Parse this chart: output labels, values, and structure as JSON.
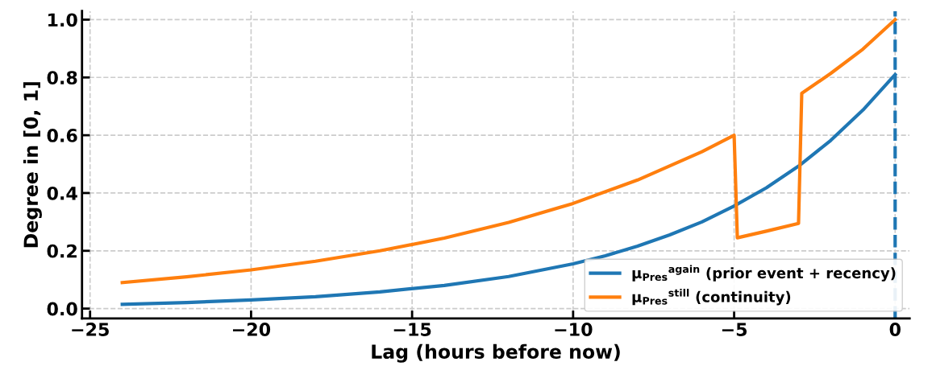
{
  "chart_data": {
    "type": "line",
    "xlabel": "Lag (hours before now)",
    "ylabel": "Degree in [0, 1]",
    "series": [
      {
        "name": "μ$_{Pres}$$^{again}$ (prior event + recency)",
        "color": "#1f77b4",
        "x": [
          -24,
          -22,
          -20,
          -18,
          -16,
          -14,
          -12,
          -10,
          -9,
          -8,
          -7,
          -6,
          -5,
          -4,
          -3,
          -2,
          -1,
          0
        ],
        "values": [
          0.015,
          0.021,
          0.03,
          0.041,
          0.058,
          0.08,
          0.111,
          0.155,
          0.183,
          0.216,
          0.255,
          0.3,
          0.355,
          0.418,
          0.493,
          0.582,
          0.687,
          0.81
        ]
      },
      {
        "name": "μ$_{Pres}$$^{still}$ (continuity)",
        "color": "#ff7f0e",
        "x": [
          -24,
          -22,
          -20,
          -18,
          -16,
          -14,
          -12,
          -10,
          -8,
          -6,
          -5,
          -4.9,
          -4,
          -3,
          -2.9,
          -2,
          -1,
          0
        ],
        "values": [
          0.09,
          0.11,
          0.134,
          0.164,
          0.2,
          0.244,
          0.298,
          0.364,
          0.445,
          0.543,
          0.6,
          0.245,
          0.268,
          0.295,
          0.745,
          0.814,
          0.898,
          1.0
        ]
      }
    ],
    "ref_lines": [
      {
        "axis": "x",
        "value": 0,
        "color": "#1f77b4",
        "line_style": "dashed"
      }
    ],
    "xlim": [
      -25.25,
      0.45
    ],
    "ylim": [
      -0.034,
      1.03
    ],
    "xticks": [
      {
        "value": -25,
        "label": "−25"
      },
      {
        "value": -20,
        "label": "−20"
      },
      {
        "value": -15,
        "label": "−15"
      },
      {
        "value": -10,
        "label": "−10"
      },
      {
        "value": -5,
        "label": "−5"
      },
      {
        "value": 0,
        "label": "0"
      }
    ],
    "yticks": [
      {
        "value": 0,
        "label": "0.0"
      },
      {
        "value": 0.2,
        "label": "0.2"
      },
      {
        "value": 0.4,
        "label": "0.4"
      },
      {
        "value": 0.6,
        "label": "0.6"
      },
      {
        "value": 0.8,
        "label": "0.8"
      },
      {
        "value": 1.0,
        "label": "1.0"
      }
    ],
    "grid": true,
    "legend": "bottom right",
    "line_style": "solid",
    "marker": "none"
  }
}
